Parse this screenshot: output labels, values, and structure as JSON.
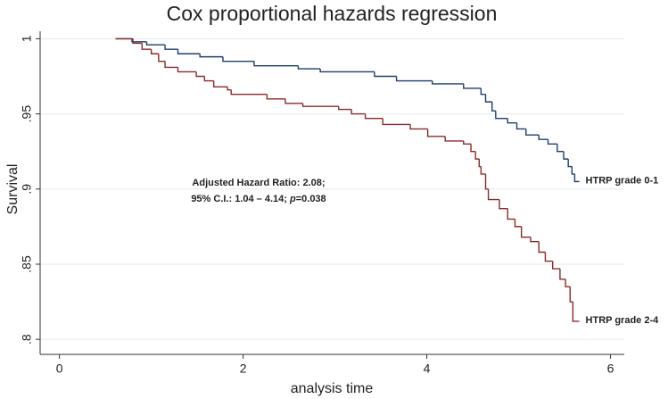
{
  "chart_data": {
    "type": "step",
    "title": "Cox proportional hazards regression",
    "x_label": "analysis time",
    "y_label": "Survival",
    "annotation": {
      "line1": "Adjusted Hazard Ratio: 2.08;",
      "line2": [
        "95% C.I.: 1.04 – 4.14; ",
        "p",
        "=0.038"
      ]
    },
    "xlim": [
      -0.21,
      6.15
    ],
    "xticks": [
      0,
      2,
      4,
      6
    ],
    "ylim": [
      0.79,
      1.005
    ],
    "yticks": [
      {
        "value": 0.8,
        "label": ".8"
      },
      {
        "value": 0.85,
        "label": ".85"
      },
      {
        "value": 0.9,
        "label": ".9"
      },
      {
        "value": 0.95,
        "label": ".95"
      },
      {
        "value": 1,
        "label": "1"
      }
    ],
    "grid": true,
    "series": [
      {
        "name": "HTRP grade 0-1",
        "color": "#1f3f6e",
        "x": [
          0.61,
          0.79,
          0.95,
          1.15,
          1.29,
          1.53,
          1.78,
          2.12,
          2.6,
          2.84,
          3.43,
          3.67,
          4.06,
          4.4,
          4.59,
          4.64,
          4.71,
          4.75,
          4.88,
          4.98,
          5.08,
          5.22,
          5.32,
          5.42,
          5.49,
          5.54,
          5.58,
          5.61,
          5.66
        ],
        "values": [
          1.0,
          0.998,
          0.996,
          0.993,
          0.99,
          0.988,
          0.985,
          0.982,
          0.98,
          0.978,
          0.975,
          0.972,
          0.97,
          0.967,
          0.963,
          0.958,
          0.952,
          0.947,
          0.944,
          0.94,
          0.936,
          0.933,
          0.93,
          0.925,
          0.92,
          0.915,
          0.91,
          0.905,
          0.905
        ]
      },
      {
        "name": "HTRP grade 2-4",
        "color": "#8b2a2a",
        "x": [
          0.61,
          0.8,
          0.9,
          1.0,
          1.08,
          1.15,
          1.29,
          1.49,
          1.58,
          1.68,
          1.83,
          1.87,
          2.26,
          2.46,
          2.65,
          3.04,
          3.18,
          3.33,
          3.52,
          3.82,
          4.01,
          4.2,
          4.4,
          4.48,
          4.53,
          4.57,
          4.59,
          4.64,
          4.67,
          4.79,
          4.88,
          4.96,
          5.03,
          5.13,
          5.22,
          5.29,
          5.37,
          5.45,
          5.51,
          5.56,
          5.59,
          5.66
        ],
        "values": [
          1.0,
          0.997,
          0.993,
          0.99,
          0.985,
          0.981,
          0.978,
          0.975,
          0.972,
          0.968,
          0.966,
          0.963,
          0.96,
          0.957,
          0.955,
          0.953,
          0.95,
          0.947,
          0.943,
          0.94,
          0.935,
          0.932,
          0.93,
          0.925,
          0.92,
          0.915,
          0.91,
          0.9,
          0.893,
          0.887,
          0.88,
          0.875,
          0.868,
          0.865,
          0.858,
          0.852,
          0.847,
          0.84,
          0.835,
          0.825,
          0.812,
          0.812
        ]
      }
    ]
  }
}
